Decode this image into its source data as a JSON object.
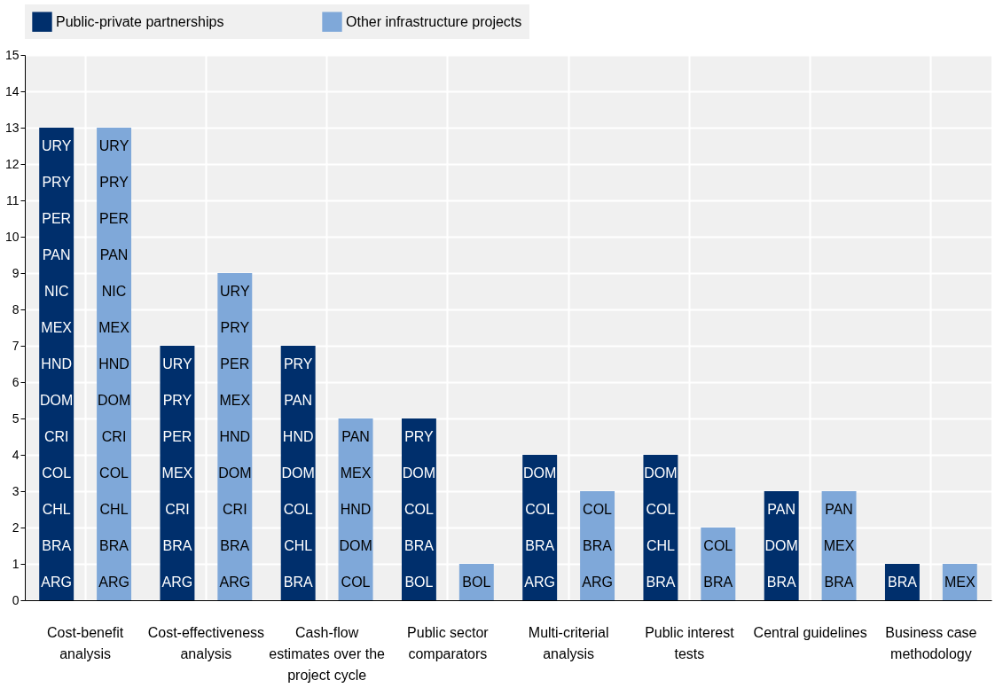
{
  "chart_data": {
    "type": "bar",
    "categories": [
      "Cost-benefit analysis",
      "Cost-effectiveness analysis",
      "Cash-flow estimates over the project cycle",
      "Public sector comparators",
      "Multi-criterial analysis",
      "Public interest tests",
      "Central guidelines",
      "Business case methodology"
    ],
    "series": [
      {
        "name": "Public-private partnerships",
        "color": "#002f6c",
        "values": [
          13,
          7,
          7,
          5,
          4,
          4,
          3,
          1
        ]
      },
      {
        "name": "Other infrastructure projects",
        "color": "#7fa8d9",
        "values": [
          13,
          9,
          5,
          1,
          3,
          2,
          3,
          1
        ]
      }
    ],
    "ylim": [
      0,
      15
    ],
    "yticks": [
      0,
      1,
      2,
      3,
      4,
      5,
      6,
      7,
      8,
      9,
      10,
      11,
      12,
      13,
      14,
      15
    ],
    "grid": true,
    "legend": "top",
    "annotations": [
      "ARG",
      "BRA",
      "CHL",
      "COL",
      "CRI",
      "DOM",
      "HND",
      "MEX",
      "NIC",
      "PAN",
      "PER",
      "PRY",
      "URY",
      "ARG",
      "BRA",
      "CHL",
      "COL",
      "CRI",
      "DOM",
      "HND",
      "MEX",
      "NIC",
      "PAN",
      "PER",
      "PRY",
      "URY",
      "ARG",
      "BRA",
      "CRI",
      "MEX",
      "PER",
      "PRY",
      "URY",
      "ARG",
      "BRA",
      "CRI",
      "DOM",
      "HND",
      "MEX",
      "PER",
      "PRY",
      "URY",
      "BRA",
      "CHL",
      "COL",
      "DOM",
      "HND",
      "PAN",
      "PRY",
      "COL",
      "DOM",
      "HND",
      "MEX",
      "PAN",
      "BOL",
      "BRA",
      "COL",
      "DOM",
      "PRY",
      "BOL",
      "ARG",
      "BRA",
      "COL",
      "DOM",
      "ARG",
      "BRA",
      "COL",
      "BRA",
      "CHL",
      "COL",
      "DOM",
      "BRA",
      "COL",
      "BRA",
      "DOM",
      "PAN",
      "BRA",
      "MEX",
      "PAN",
      "BRA",
      "MEX"
    ]
  }
}
